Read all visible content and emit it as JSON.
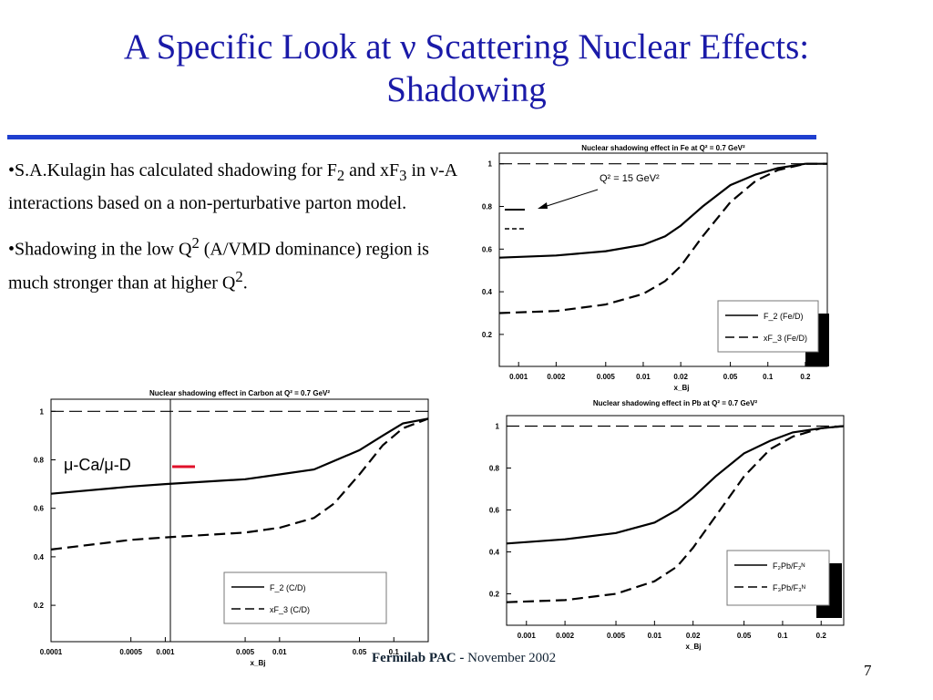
{
  "slide": {
    "title_line1": "A Specific Look at ν Scattering Nuclear Effects:",
    "title_line2": "Shadowing",
    "bullets": [
      {
        "text_parts": [
          "•S.A.Kulagin has  calculated shadowing for F",
          "2",
          " and xF",
          "3",
          " in ν-A interactions based on a non-perturbative parton model."
        ]
      },
      {
        "text_parts": [
          "•Shadowing in the low Q",
          "2",
          " (A/VMD dominance) region is much stronger than at higher Q",
          "2",
          "."
        ]
      }
    ],
    "footer_bold": "Fermilab PAC - ",
    "footer_date": "November 2002",
    "page_number": "7",
    "colors": {
      "title": "#1a1aa8",
      "rule": "#1f3fcf",
      "marker_red": "#e0102a"
    }
  },
  "chart_data": [
    {
      "type": "line",
      "title": "Nuclear shadowing effect in Fe at Q² = 0.7 GeV²",
      "xlabel": "x_Bj",
      "x_scale": "log",
      "xlim": [
        0.0007,
        0.3
      ],
      "ylim": [
        0.05,
        1.05
      ],
      "x_ticks": [
        "0.001",
        "0.002",
        "0.005",
        "0.01",
        "0.02",
        "0.05",
        "0.1",
        "0.2"
      ],
      "y_ticks": [
        "0.2",
        "0.4",
        "0.6",
        "0.8",
        "1"
      ],
      "annotation": "Q² = 15 GeV²",
      "legend_position": "bottom-right",
      "series": [
        {
          "name": "F_2 (Fe/D)",
          "style": "solid",
          "x": [
            0.0007,
            0.002,
            0.005,
            0.01,
            0.015,
            0.02,
            0.03,
            0.05,
            0.08,
            0.12,
            0.2,
            0.3
          ],
          "y": [
            0.56,
            0.57,
            0.59,
            0.62,
            0.66,
            0.71,
            0.8,
            0.9,
            0.95,
            0.98,
            1.0,
            1.0
          ]
        },
        {
          "name": "xF_3 (Fe/D)",
          "style": "dashed",
          "x": [
            0.0007,
            0.002,
            0.005,
            0.01,
            0.015,
            0.02,
            0.03,
            0.05,
            0.08,
            0.12,
            0.2,
            0.3
          ],
          "y": [
            0.3,
            0.31,
            0.34,
            0.39,
            0.45,
            0.52,
            0.66,
            0.82,
            0.92,
            0.97,
            1.0,
            1.0
          ]
        }
      ]
    },
    {
      "type": "line",
      "title": "Nuclear shadowing effect in Carbon at Q² = 0.7 GeV²",
      "xlabel": "x_Bj",
      "x_scale": "log",
      "xlim": [
        0.0001,
        0.2
      ],
      "ylim": [
        0.05,
        1.05
      ],
      "x_ticks": [
        "0.0001",
        "0.0005",
        "0.001",
        "0.005",
        "0.01",
        "0.05",
        "0.1"
      ],
      "y_ticks": [
        "0.2",
        "0.4",
        "0.6",
        "0.8",
        "1"
      ],
      "annotation": "μ-Ca/μ-D",
      "legend_position": "bottom-right",
      "series": [
        {
          "name": "F_2 (C/D)",
          "style": "solid",
          "x": [
            0.0001,
            0.0005,
            0.001,
            0.005,
            0.01,
            0.02,
            0.05,
            0.08,
            0.12,
            0.2
          ],
          "y": [
            0.66,
            0.69,
            0.7,
            0.72,
            0.74,
            0.76,
            0.84,
            0.9,
            0.95,
            0.97
          ]
        },
        {
          "name": "xF_3 (C/D)",
          "style": "dashed",
          "x": [
            0.0001,
            0.0005,
            0.001,
            0.005,
            0.01,
            0.02,
            0.03,
            0.05,
            0.08,
            0.12,
            0.2
          ],
          "y": [
            0.43,
            0.47,
            0.48,
            0.5,
            0.52,
            0.56,
            0.62,
            0.74,
            0.86,
            0.93,
            0.97
          ]
        }
      ]
    },
    {
      "type": "line",
      "title": "Nuclear shadowing effect in Pb at Q² = 0.7 GeV²",
      "xlabel": "x_Bj",
      "x_scale": "log",
      "xlim": [
        0.0007,
        0.3
      ],
      "ylim": [
        0.05,
        1.05
      ],
      "x_ticks": [
        "0.001",
        "0.002",
        "0.005",
        "0.01",
        "0.02",
        "0.05",
        "0.1",
        "0.2"
      ],
      "y_ticks": [
        "0.2",
        "0.4",
        "0.6",
        "0.8",
        "1"
      ],
      "legend_position": "bottom-right",
      "series": [
        {
          "name": "F₂Pb/F₂ᴺ",
          "style": "solid",
          "x": [
            0.0007,
            0.002,
            0.005,
            0.01,
            0.015,
            0.02,
            0.03,
            0.05,
            0.08,
            0.12,
            0.2,
            0.3
          ],
          "y": [
            0.44,
            0.46,
            0.49,
            0.54,
            0.6,
            0.66,
            0.76,
            0.87,
            0.93,
            0.97,
            0.99,
            1.0
          ]
        },
        {
          "name": "F₃Pb/F₃ᴺ",
          "style": "dashed",
          "x": [
            0.0007,
            0.002,
            0.005,
            0.01,
            0.015,
            0.02,
            0.03,
            0.05,
            0.08,
            0.12,
            0.2,
            0.3
          ],
          "y": [
            0.16,
            0.17,
            0.2,
            0.26,
            0.33,
            0.42,
            0.57,
            0.76,
            0.89,
            0.95,
            0.99,
            1.0
          ]
        }
      ]
    }
  ]
}
